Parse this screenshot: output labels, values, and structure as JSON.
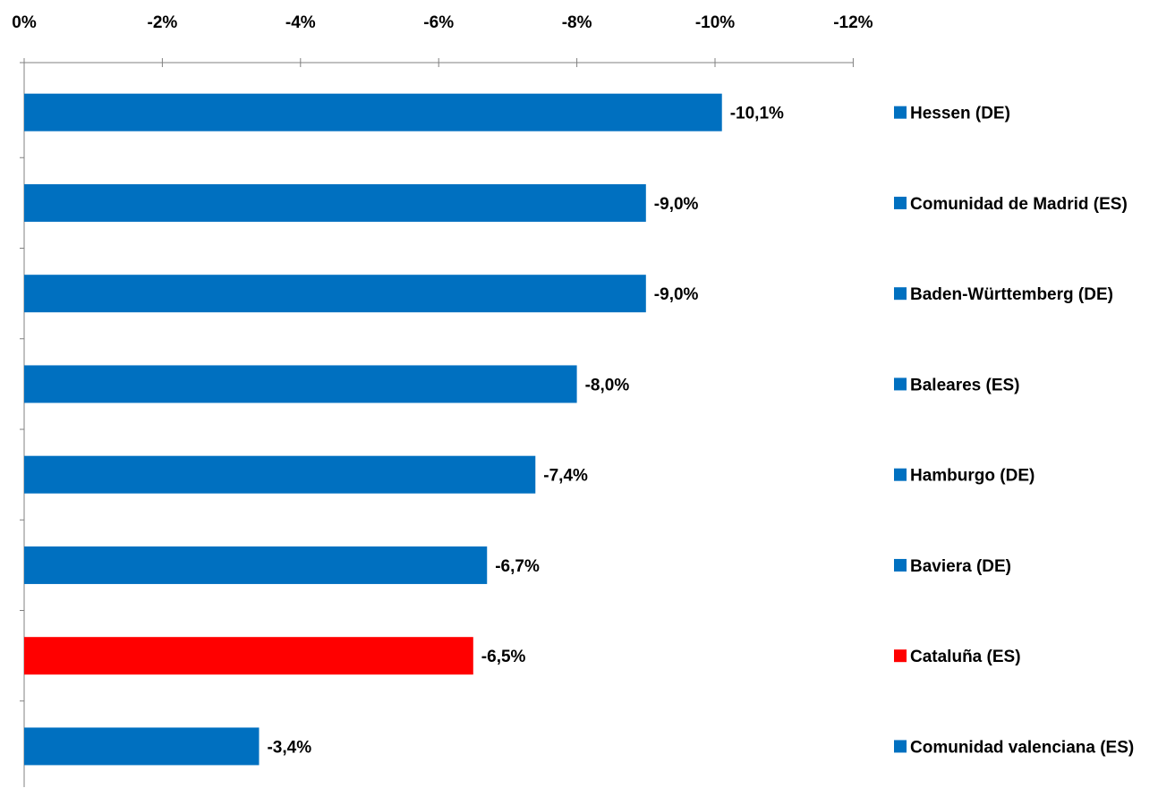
{
  "chart_data": {
    "type": "bar",
    "orientation": "horizontal",
    "axis_position": "top",
    "axis_reversed": true,
    "xlim": [
      0,
      -12
    ],
    "tick_values": [
      0,
      -2,
      -4,
      -6,
      -8,
      -10,
      -12
    ],
    "tick_labels": [
      "0%",
      "-2%",
      "-4%",
      "-6%",
      "-8%",
      "-10%",
      "-12%"
    ],
    "categories": [
      "Hessen (DE)",
      "Comunidad de Madrid (ES)",
      "Baden-Württemberg (DE)",
      "Baleares (ES)",
      "Hamburgo (DE)",
      "Baviera (DE)",
      "Cataluña (ES)",
      "Comunidad valenciana (ES)"
    ],
    "values": [
      -10.1,
      -9.0,
      -9.0,
      -8.0,
      -7.4,
      -6.7,
      -6.5,
      -3.4
    ],
    "data_labels": [
      "-10,1%",
      "-9,0%",
      "-9,0%",
      "-8,0%",
      "-7,4%",
      "-6,7%",
      "-6,5%",
      "-3,4%"
    ],
    "bar_colors": [
      "#0070C0",
      "#0070C0",
      "#0070C0",
      "#0070C0",
      "#0070C0",
      "#0070C0",
      "#FF0000",
      "#0070C0"
    ],
    "grid": false,
    "legend_position": "right"
  }
}
